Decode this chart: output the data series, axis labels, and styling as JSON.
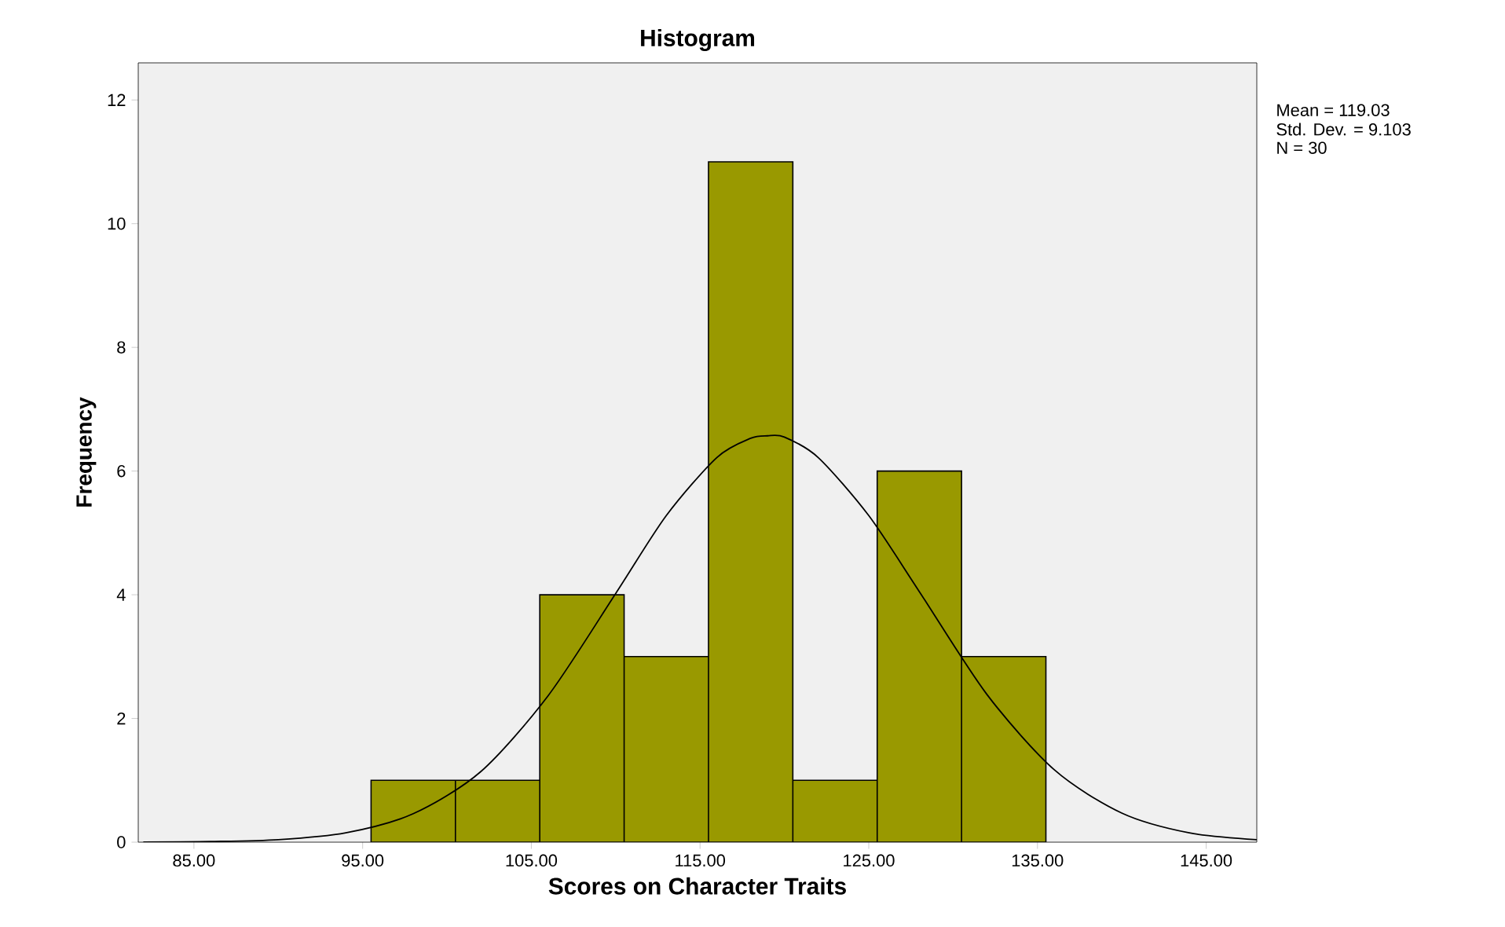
{
  "chart_data": {
    "type": "histogram",
    "title": "Histogram",
    "xlabel": "Scores on Character Traits",
    "ylabel": "Frequency",
    "bins": [
      95.5,
      100.5,
      105.5,
      110.5,
      115.5,
      120.5,
      125.5,
      130.5,
      135.5
    ],
    "values": [
      1,
      1,
      4,
      3,
      11,
      1,
      6,
      3
    ],
    "color": "#999900",
    "series": [
      {
        "type": "line",
        "color": "#000000",
        "x": [
          82,
          86,
          90,
          94,
          98,
          102,
          106,
          110,
          113,
          116,
          118,
          119,
          120,
          122,
          125,
          128,
          132,
          136,
          140,
          144,
          148
        ],
        "values": [
          0.0,
          0.01,
          0.04,
          0.15,
          0.46,
          1.14,
          2.37,
          4.02,
          5.28,
          6.22,
          6.53,
          6.57,
          6.55,
          6.22,
          5.28,
          4.05,
          2.39,
          1.17,
          0.47,
          0.15,
          0.04
        ]
      }
    ],
    "xlim": [
      81.7,
      148
    ],
    "ylim": [
      0,
      12.6
    ],
    "xticks": [
      {
        "value": 85,
        "label": "85.00"
      },
      {
        "value": 95,
        "label": "95.00"
      },
      {
        "value": 105,
        "label": "105.00"
      },
      {
        "value": 115,
        "label": "115.00"
      },
      {
        "value": 125,
        "label": "125.00"
      },
      {
        "value": 135,
        "label": "135.00"
      },
      {
        "value": 145,
        "label": "145.00"
      }
    ],
    "yticks": [
      0,
      2,
      4,
      6,
      8,
      10,
      12
    ],
    "grid": false,
    "annotations": [
      "Mean = 119.03",
      "Std. Dev. = 9.103",
      "N = 30"
    ]
  }
}
